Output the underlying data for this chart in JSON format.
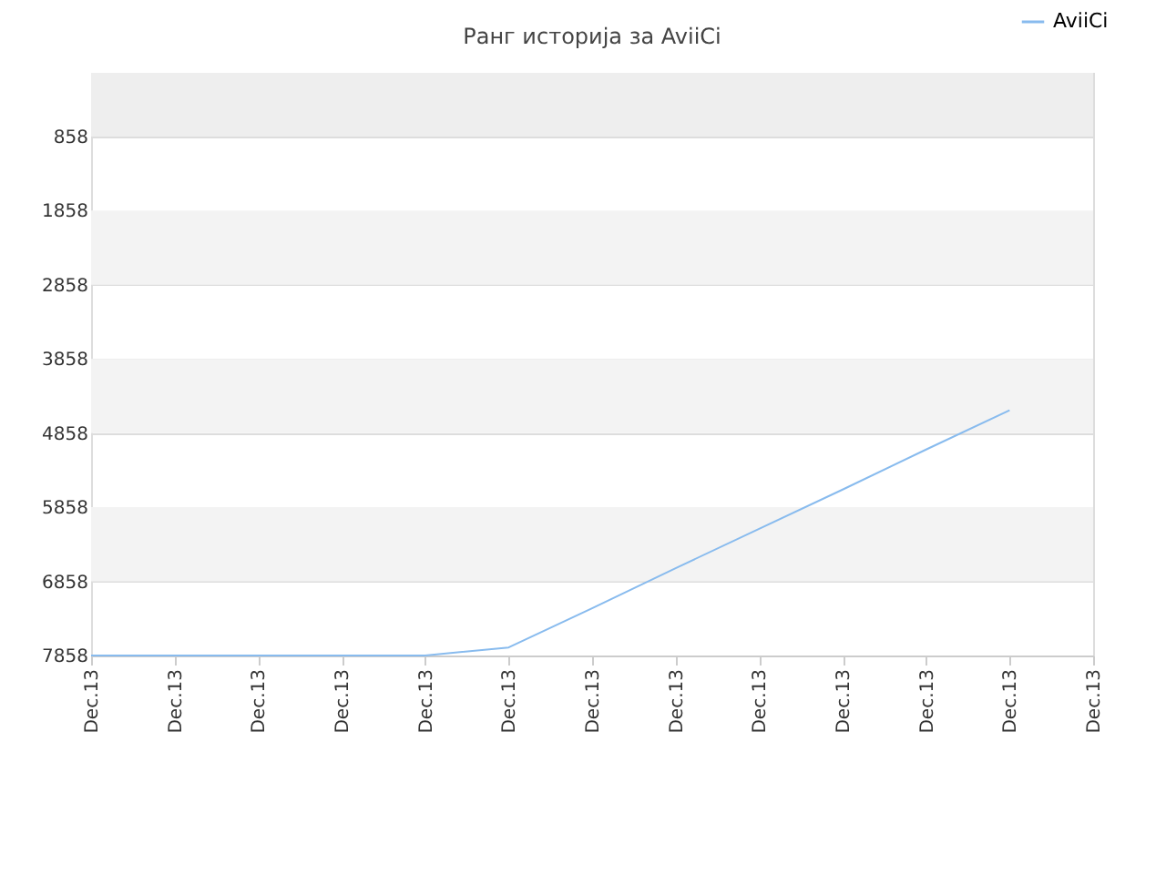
{
  "chart_data": {
    "type": "line",
    "title": "Ранг историја за AviiCi",
    "categories": [
      "Dec.13",
      "Dec.13",
      "Dec.13",
      "Dec.13",
      "Dec.13",
      "Dec.13",
      "Dec.13",
      "Dec.13",
      "Dec.13",
      "Dec.13",
      "Dec.13",
      "Dec.13",
      "Dec.13"
    ],
    "series": [
      {
        "name": "AviiCi",
        "color": "#88bbee",
        "values": [
          7858,
          7858,
          7858,
          7858,
          7858,
          7750,
          7220,
          6680,
          6150,
          5620,
          5080,
          4550,
          null
        ]
      }
    ],
    "ylim": [
      7858,
      0
    ],
    "yticks": [
      858,
      1858,
      2858,
      3858,
      4858,
      5858,
      6858,
      7858
    ],
    "bands": [
      {
        "axis": "y",
        "from": 0,
        "to": 858,
        "color": "#eeeeee"
      },
      {
        "axis": "y",
        "from": 1858,
        "to": 2858,
        "color": "#f3f3f3"
      },
      {
        "axis": "y",
        "from": 3858,
        "to": 4858,
        "color": "#f3f3f3"
      },
      {
        "axis": "y",
        "from": 5858,
        "to": 6858,
        "color": "#f3f3f3"
      }
    ],
    "grid": "y",
    "legend": "top right",
    "marker": "none",
    "line_style": "solid"
  }
}
